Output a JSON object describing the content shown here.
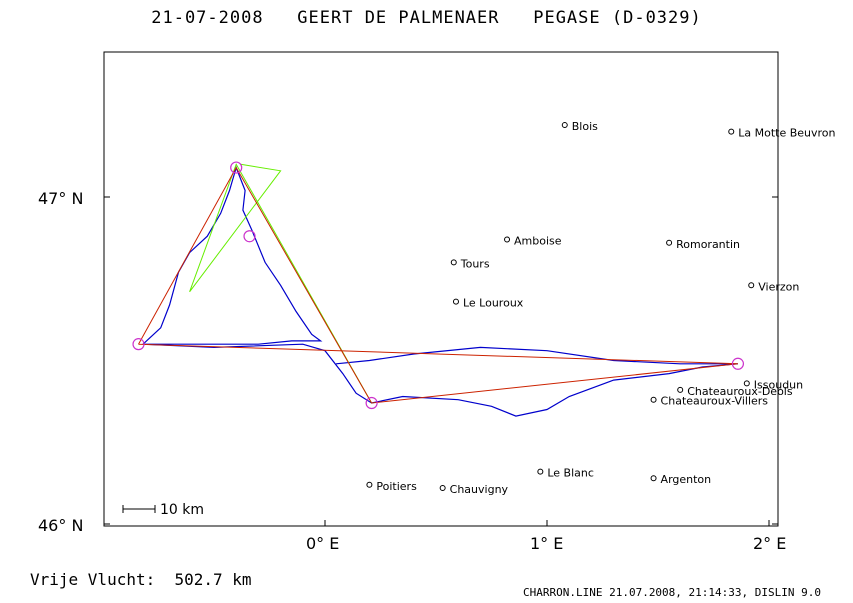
{
  "header": {
    "title": "21-07-2008   GEERT DE PALMENAER   PEGASE (D-0329)"
  },
  "map": {
    "lon_labels": [
      "0° E",
      "1° E",
      "2° E"
    ],
    "lat_labels": [
      "47° N",
      "46° N"
    ],
    "scale_label": "10 km",
    "colors": {
      "frame": "#000000",
      "track": "#0000cc",
      "declared_task": "#cc2200",
      "alternate_task": "#66ee00",
      "turnpoint": "#cc33cc"
    },
    "towns": [
      {
        "name": "Blois",
        "lon": 1.08,
        "lat": 47.22
      },
      {
        "name": "La Motte Beuvron",
        "lon": 1.83,
        "lat": 47.2
      },
      {
        "name": "Amboise",
        "lon": 0.82,
        "lat": 46.87
      },
      {
        "name": "Romorantin",
        "lon": 1.55,
        "lat": 46.86
      },
      {
        "name": "Tours",
        "lon": 0.58,
        "lat": 46.8
      },
      {
        "name": "Vierzon",
        "lon": 1.92,
        "lat": 46.73
      },
      {
        "name": "Le Louroux",
        "lon": 0.59,
        "lat": 46.68
      },
      {
        "name": "Issoudun",
        "lon": 1.9,
        "lat": 46.43
      },
      {
        "name": "Chateauroux-Deols",
        "lon": 1.6,
        "lat": 46.41
      },
      {
        "name": "Chateauroux-Villers",
        "lon": 1.48,
        "lat": 46.38
      },
      {
        "name": "Le Blanc",
        "lon": 0.97,
        "lat": 46.16
      },
      {
        "name": "Argenton",
        "lon": 1.48,
        "lat": 46.14
      },
      {
        "name": "Poitiers",
        "lon": 0.2,
        "lat": 46.12
      },
      {
        "name": "Chauvigny",
        "lon": 0.53,
        "lat": 46.11
      }
    ],
    "turnpoints": [
      {
        "lon": -0.84,
        "lat": 46.55
      },
      {
        "lon": -0.4,
        "lat": 47.09
      },
      {
        "lon": -0.34,
        "lat": 46.88
      },
      {
        "lon": 0.21,
        "lat": 46.37
      },
      {
        "lon": 1.86,
        "lat": 46.49
      }
    ],
    "declared_task": [
      {
        "lon": -0.84,
        "lat": 46.55
      },
      {
        "lon": -0.4,
        "lat": 47.09
      },
      {
        "lon": 0.21,
        "lat": 46.37
      },
      {
        "lon": 1.86,
        "lat": 46.49
      },
      {
        "lon": -0.84,
        "lat": 46.55
      }
    ],
    "alternate_task": [
      {
        "lon": -0.38,
        "lat": 47.1
      },
      {
        "lon": -0.2,
        "lat": 47.08
      },
      {
        "lon": -0.61,
        "lat": 46.71
      },
      {
        "lon": -0.4,
        "lat": 47.1
      },
      {
        "lon": 0.21,
        "lat": 46.37
      }
    ],
    "track": [
      {
        "lon": -0.82,
        "lat": 46.55
      },
      {
        "lon": -0.74,
        "lat": 46.6
      },
      {
        "lon": -0.7,
        "lat": 46.67
      },
      {
        "lon": -0.66,
        "lat": 46.77
      },
      {
        "lon": -0.61,
        "lat": 46.83
      },
      {
        "lon": -0.53,
        "lat": 46.88
      },
      {
        "lon": -0.47,
        "lat": 46.95
      },
      {
        "lon": -0.43,
        "lat": 47.02
      },
      {
        "lon": -0.4,
        "lat": 47.09
      },
      {
        "lon": -0.36,
        "lat": 47.02
      },
      {
        "lon": -0.37,
        "lat": 46.96
      },
      {
        "lon": -0.33,
        "lat": 46.9
      },
      {
        "lon": -0.27,
        "lat": 46.8
      },
      {
        "lon": -0.2,
        "lat": 46.73
      },
      {
        "lon": -0.13,
        "lat": 46.65
      },
      {
        "lon": -0.06,
        "lat": 46.58
      },
      {
        "lon": -0.02,
        "lat": 46.56
      },
      {
        "lon": -0.15,
        "lat": 46.56
      },
      {
        "lon": -0.3,
        "lat": 46.55
      },
      {
        "lon": -0.5,
        "lat": 46.55
      },
      {
        "lon": -0.7,
        "lat": 46.55
      },
      {
        "lon": -0.82,
        "lat": 46.55
      },
      {
        "lon": -0.5,
        "lat": 46.54
      },
      {
        "lon": -0.1,
        "lat": 46.55
      },
      {
        "lon": 0.0,
        "lat": 46.53
      },
      {
        "lon": 0.08,
        "lat": 46.46
      },
      {
        "lon": 0.14,
        "lat": 46.4
      },
      {
        "lon": 0.21,
        "lat": 46.37
      },
      {
        "lon": 0.35,
        "lat": 46.39
      },
      {
        "lon": 0.6,
        "lat": 46.38
      },
      {
        "lon": 0.75,
        "lat": 46.36
      },
      {
        "lon": 0.86,
        "lat": 46.33
      },
      {
        "lon": 1.0,
        "lat": 46.35
      },
      {
        "lon": 1.1,
        "lat": 46.39
      },
      {
        "lon": 1.3,
        "lat": 46.44
      },
      {
        "lon": 1.55,
        "lat": 46.46
      },
      {
        "lon": 1.7,
        "lat": 46.48
      },
      {
        "lon": 1.86,
        "lat": 46.49
      },
      {
        "lon": 1.6,
        "lat": 46.49
      },
      {
        "lon": 1.3,
        "lat": 46.5
      },
      {
        "lon": 1.0,
        "lat": 46.53
      },
      {
        "lon": 0.7,
        "lat": 46.54
      },
      {
        "lon": 0.4,
        "lat": 46.52
      },
      {
        "lon": 0.2,
        "lat": 46.5
      },
      {
        "lon": 0.05,
        "lat": 46.49
      }
    ]
  },
  "footer": {
    "distance": "Vrije Vlucht:  502.7 km",
    "credit": "CHARRON.LINE 21.07.2008, 21:14:33, DISLIN 9.0"
  }
}
